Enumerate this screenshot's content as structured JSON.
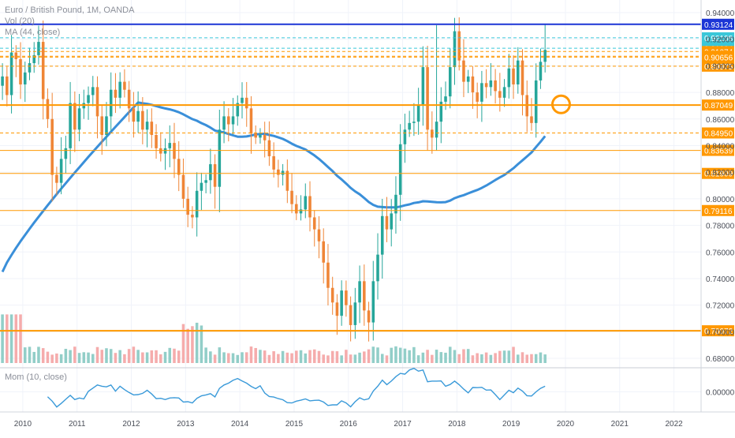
{
  "header": {
    "symbol": "Euro / British Pound, 1M, OANDA",
    "vol": "Vol (20)",
    "ma": "MA (44, close)"
  },
  "mom_pane": {
    "label": "Mom (10, close)"
  },
  "colors": {
    "up": "#26a69a",
    "down": "#ef8536",
    "vol_up": "#86c9c2",
    "vol_down": "#f4a3a3",
    "ma": "#3a8fd9",
    "mom": "#3a9ad9",
    "orange": "#ff9800",
    "blue_line": "#1c35d6",
    "cyan": "#3ac7d9"
  },
  "chart_data": {
    "type": "candlestick",
    "x_ticks": [
      "2010",
      "2011",
      "2012",
      "2013",
      "2014",
      "2015",
      "2016",
      "2017",
      "2018",
      "2019",
      "2020",
      "2021",
      "2022"
    ],
    "x_tick_years": [
      2010,
      2011,
      2012,
      2013,
      2014,
      2015,
      2016,
      2017,
      2018,
      2019,
      2020,
      2021,
      2022
    ],
    "x_range": [
      2009.58,
      2022.5
    ],
    "y_ticks": [
      "0.94000",
      "0.92000",
      "0.90000",
      "0.88000",
      "0.86000",
      "0.84000",
      "0.82000",
      "0.80000",
      "0.78000",
      "0.76000",
      "0.74000",
      "0.72000",
      "0.70000",
      "0.68000"
    ],
    "y_tick_values": [
      0.94,
      0.92,
      0.9,
      0.88,
      0.86,
      0.84,
      0.82,
      0.8,
      0.78,
      0.76,
      0.74,
      0.72,
      0.7,
      0.68
    ],
    "y_range": [
      0.6735,
      0.9495
    ],
    "mom_ticks": [
      "0.00000"
    ],
    "mom_range": [
      -0.13,
      0.15
    ],
    "start": "2009-08",
    "closes": [
      0.892,
      0.878,
      0.91,
      0.905,
      0.886,
      0.895,
      0.902,
      0.908,
      0.918,
      0.875,
      0.86,
      0.818,
      0.812,
      0.83,
      0.838,
      0.872,
      0.852,
      0.868,
      0.872,
      0.878,
      0.884,
      0.862,
      0.848,
      0.862,
      0.882,
      0.876,
      0.888,
      0.882,
      0.868,
      0.858,
      0.866,
      0.852,
      0.858,
      0.848,
      0.838,
      0.834,
      0.838,
      0.842,
      0.83,
      0.818,
      0.8,
      0.788,
      0.786,
      0.806,
      0.812,
      0.814,
      0.826,
      0.809,
      0.852,
      0.862,
      0.856,
      0.862,
      0.872,
      0.876,
      0.868,
      0.849,
      0.846,
      0.848,
      0.844,
      0.832,
      0.822,
      0.818,
      0.821,
      0.806,
      0.796,
      0.789,
      0.792,
      0.802,
      0.786,
      0.777,
      0.768,
      0.752,
      0.733,
      0.722,
      0.712,
      0.731,
      0.72,
      0.705,
      0.722,
      0.738,
      0.716,
      0.707,
      0.738,
      0.758,
      0.787,
      0.777,
      0.789,
      0.803,
      0.841,
      0.852,
      0.857,
      0.858,
      0.871,
      0.899,
      0.852,
      0.846,
      0.858,
      0.873,
      0.877,
      0.899,
      0.926,
      0.904,
      0.888,
      0.892,
      0.88,
      0.873,
      0.887,
      0.884,
      0.889,
      0.881,
      0.876,
      0.884,
      0.898,
      0.886,
      0.904,
      0.878,
      0.862,
      0.857,
      0.889,
      0.903,
      0.912
    ],
    "lines": [
      {
        "value": 0.93124,
        "label": "0.93124",
        "color": "#1c35d6",
        "width": 2,
        "dash": false
      },
      {
        "value": 0.92108,
        "label": "0.92108",
        "color": "#3ac7d9",
        "width": 1,
        "dash": true
      },
      {
        "value": 0.91324,
        "label": "0.91324",
        "color": "#3ac7d9",
        "width": 1,
        "dash": true
      },
      {
        "value": 0.91074,
        "label": "0.91074",
        "color": "#ff9800",
        "width": 1,
        "dash": true
      },
      {
        "value": 0.90722,
        "label": "0.90722",
        "color": "#ff9800",
        "width": 1,
        "dash": true
      },
      {
        "value": 0.90656,
        "label": "0.90656",
        "color": "#ff9800",
        "width": 1,
        "dash": true
      },
      {
        "value": 0.89975,
        "label": "0.89975",
        "color": "#ff9800",
        "width": 1,
        "dash": true
      },
      {
        "value": 0.87049,
        "label": "0.87049",
        "color": "#ff9800",
        "width": 2,
        "dash": false
      },
      {
        "value": 0.8495,
        "label": "0.84950",
        "color": "#ff9800",
        "width": 1,
        "dash": true
      },
      {
        "value": 0.83639,
        "label": "0.83639",
        "color": "#ff9800",
        "width": 1,
        "dash": false
      },
      {
        "value": 0.81909,
        "label": "0.81909",
        "color": "#ff9800",
        "width": 1,
        "dash": false
      },
      {
        "value": 0.79116,
        "label": "0.79116",
        "color": "#ff9800",
        "width": 1,
        "dash": false
      },
      {
        "value": 0.70072,
        "label": "0.70072",
        "color": "#ff9800",
        "width": 2,
        "dash": false
      }
    ],
    "marker": {
      "x": 2019.92,
      "y": 0.871,
      "shape": "circle",
      "color": "#ff9800"
    }
  }
}
